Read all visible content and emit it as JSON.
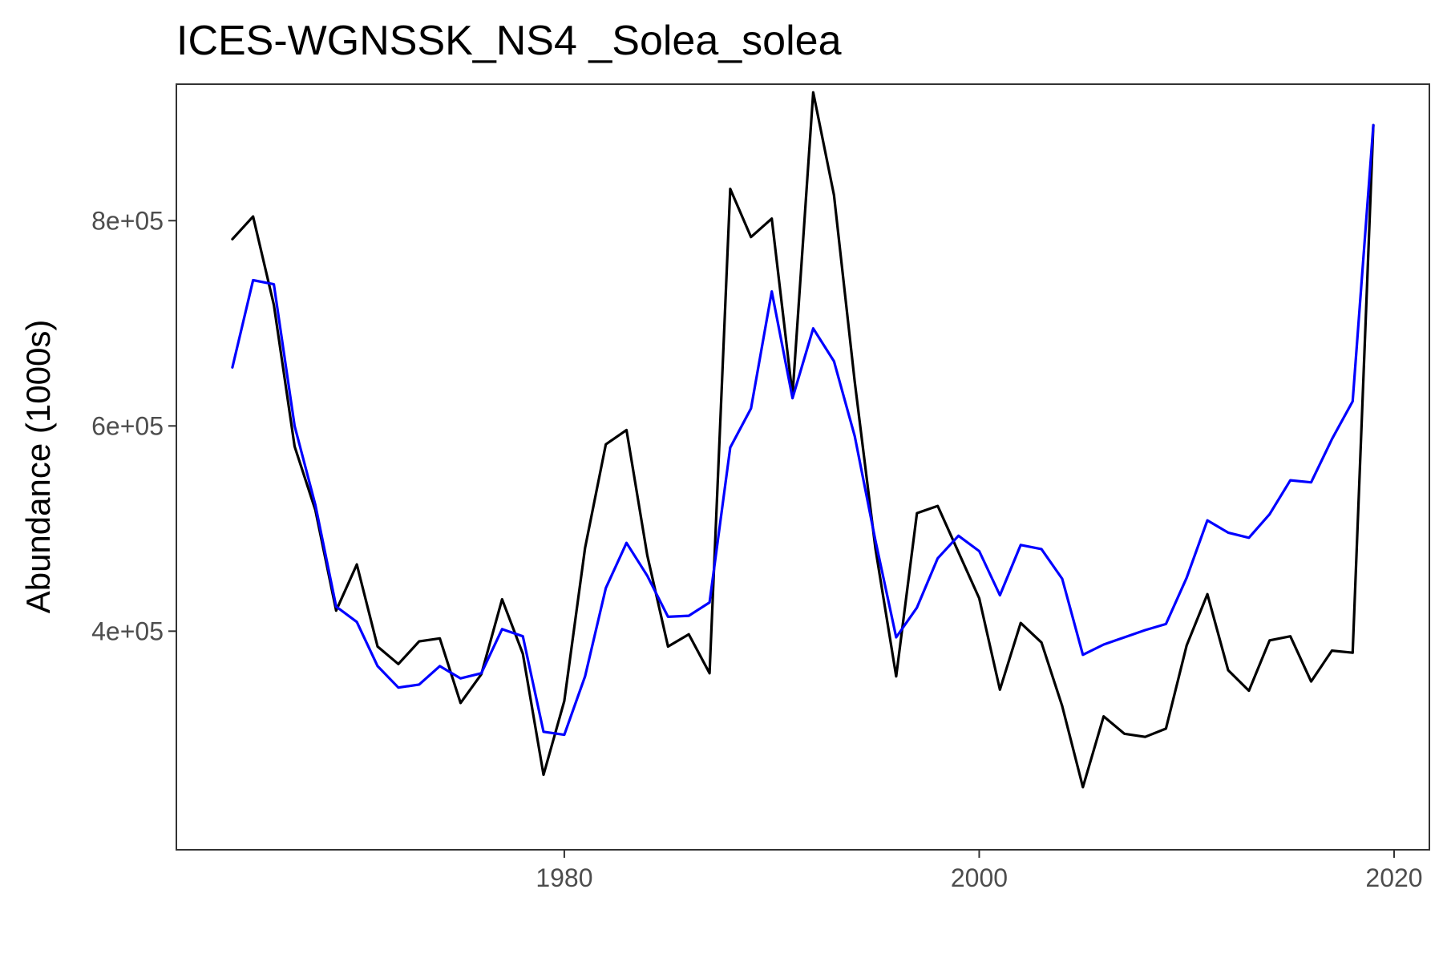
{
  "chart_data": {
    "type": "line",
    "title": "ICES-WGNSSK_NS4 _Solea_solea",
    "xlabel": "",
    "ylabel": "Abundance (1000s)",
    "xlim": [
      1961.3,
      2021.7
    ],
    "ylim": [
      187000,
      933000
    ],
    "x_ticks": [
      1980,
      2000,
      2020
    ],
    "x_tick_labels": [
      "1980",
      "2000",
      "2020"
    ],
    "y_ticks": [
      400000,
      600000,
      800000
    ],
    "y_tick_labels": [
      "4e+05",
      "6e+05",
      "8e+05"
    ],
    "grid": false,
    "legend": "none",
    "x": [
      1964,
      1965,
      1966,
      1967,
      1968,
      1969,
      1970,
      1971,
      1972,
      1973,
      1974,
      1975,
      1976,
      1977,
      1978,
      1979,
      1980,
      1981,
      1982,
      1983,
      1984,
      1985,
      1986,
      1987,
      1988,
      1989,
      1990,
      1991,
      1992,
      1993,
      1994,
      1995,
      1996,
      1997,
      1998,
      1999,
      2000,
      2001,
      2002,
      2003,
      2004,
      2005,
      2006,
      2007,
      2008,
      2009,
      2010,
      2011,
      2012,
      2013,
      2014,
      2015,
      2016,
      2017,
      2018,
      2019
    ],
    "series": [
      {
        "color": "#000000",
        "values": [
          782000,
          804000,
          718000,
          580000,
          518000,
          420000,
          465000,
          385000,
          368000,
          390000,
          393000,
          330000,
          358000,
          431000,
          378000,
          260000,
          332000,
          481000,
          582000,
          596000,
          474000,
          385000,
          397000,
          359000,
          831000,
          784000,
          802000,
          630000,
          925000,
          825000,
          643000,
          480000,
          356000,
          515000,
          522000,
          477000,
          432000,
          343000,
          408000,
          389000,
          327000,
          248000,
          317000,
          300000,
          297000,
          305000,
          386000,
          436000,
          362000,
          342000,
          391000,
          395000,
          351000,
          381000,
          379000,
          893000
        ]
      },
      {
        "color": "#0000ff",
        "values": [
          657000,
          742000,
          738000,
          600000,
          523000,
          424000,
          409000,
          366000,
          345000,
          348000,
          366000,
          354000,
          359000,
          402000,
          395000,
          302000,
          299000,
          356000,
          442000,
          486000,
          454000,
          414000,
          415000,
          428000,
          579000,
          617000,
          731000,
          627000,
          695000,
          663000,
          590000,
          488000,
          394000,
          423000,
          471000,
          493000,
          478000,
          435000,
          484000,
          480000,
          451000,
          377000,
          387000,
          394000,
          401000,
          407000,
          452000,
          508000,
          496000,
          491000,
          514000,
          547000,
          545000,
          587000,
          624000,
          893000
        ]
      }
    ]
  }
}
